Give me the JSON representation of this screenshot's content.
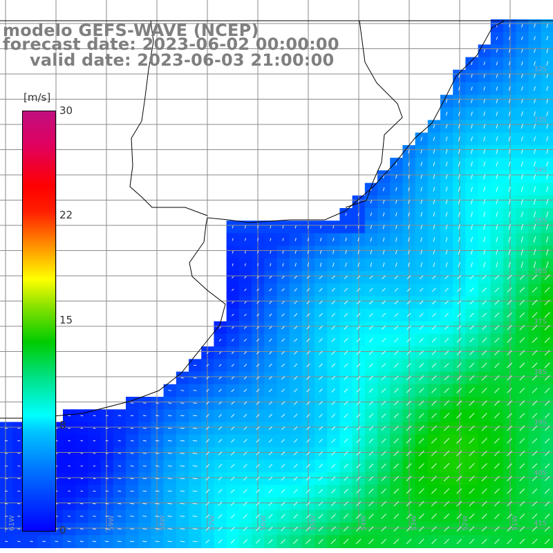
{
  "title": {
    "line1": "modelo GEFS-WAVE (NCEP)",
    "line2": "forecast date: 2023-06-02 00:00:00",
    "line3": "valid date: 2023-06-03 21:00:00"
  },
  "colorbar": {
    "unit": "[m/s]",
    "min": 0,
    "max": 30,
    "ticks": [
      "30",
      "22",
      "15",
      "8",
      "0"
    ]
  },
  "axes": {
    "lon_labels": [
      "61W",
      "60W",
      "59W",
      "58W",
      "57W",
      "56W",
      "55W",
      "54W",
      "53W",
      "52W",
      "51W"
    ],
    "lat_labels": [
      "32S",
      "33S",
      "34S",
      "35S",
      "36S",
      "37S",
      "38S",
      "39S",
      "40S",
      "41S"
    ]
  },
  "colors": {
    "land": "#ffffff",
    "grid": "#8a8a8a",
    "coast": "#000000",
    "arrow": "#ffffff",
    "title": "#7f7f7f"
  }
}
